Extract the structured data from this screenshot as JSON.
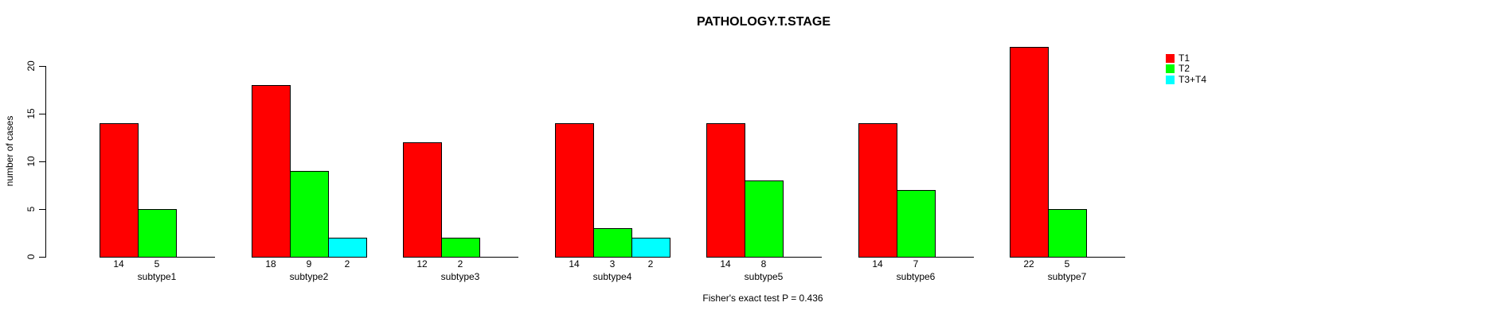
{
  "chart_data": {
    "type": "bar",
    "title": "PATHOLOGY.T.STAGE",
    "xlabel": "",
    "ylabel": "number of cases",
    "categories": [
      "subtype1",
      "subtype2",
      "subtype3",
      "subtype4",
      "subtype5",
      "subtype6",
      "subtype7"
    ],
    "series": [
      {
        "name": "T1",
        "color": "#ff0000",
        "values": [
          14,
          18,
          12,
          14,
          14,
          14,
          22
        ]
      },
      {
        "name": "T2",
        "color": "#00ff00",
        "values": [
          5,
          9,
          2,
          3,
          8,
          7,
          5
        ]
      },
      {
        "name": "T3+T4",
        "color": "#00ffff",
        "values": [
          0,
          2,
          0,
          2,
          0,
          0,
          0
        ]
      }
    ],
    "bar_value_labels": [
      [
        "14",
        "5",
        ""
      ],
      [
        "18",
        "9",
        "2"
      ],
      [
        "12",
        "2",
        ""
      ],
      [
        "14",
        "3",
        "2"
      ],
      [
        "14",
        "8",
        ""
      ],
      [
        "14",
        "7",
        ""
      ],
      [
        "22",
        "5",
        ""
      ]
    ],
    "yticks": [
      0,
      5,
      10,
      15,
      20
    ],
    "ylim": [
      0,
      20
    ],
    "grid": false,
    "legend_position": "top-right",
    "annotation": "Fisher's exact test P = 0.436"
  }
}
